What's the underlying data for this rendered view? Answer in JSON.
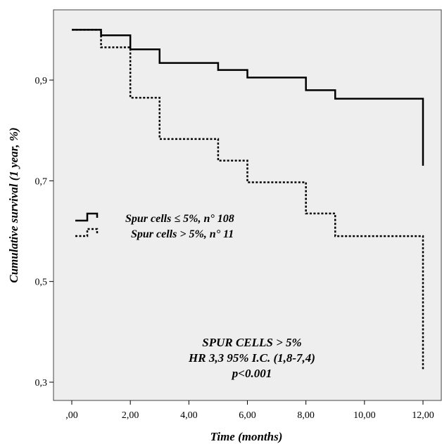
{
  "chart_data": {
    "type": "line",
    "step": true,
    "xlabel": "Time (months)",
    "ylabel": "Cumulative survival (1 year, %)",
    "xlim": [
      0,
      12
    ],
    "ylim": [
      0.27,
      1.02
    ],
    "x_ticks": [
      0,
      2,
      4,
      6,
      8,
      10,
      12
    ],
    "x_tick_labels": [
      ",00",
      "2,00",
      "4,00",
      "6,00",
      "8,00",
      "10,00",
      "12,00"
    ],
    "y_ticks": [
      0.3,
      0.5,
      0.7,
      0.9
    ],
    "y_tick_labels": [
      "0,3",
      "0,5",
      "0,7",
      "0,9"
    ],
    "grid": false,
    "plot_background": "#eeeeee",
    "legend_placement": "middle-left",
    "series": [
      {
        "name": "Spur cells ≤ 5%, n° 108",
        "style": "solid",
        "color": "#000000",
        "x": [
          0,
          1,
          2,
          3,
          5,
          6,
          8,
          9,
          12
        ],
        "y": [
          1.0,
          0.989,
          0.961,
          0.934,
          0.92,
          0.905,
          0.88,
          0.863,
          0.73
        ]
      },
      {
        "name": "Spur cells > 5%, n° 11",
        "style": "dotted",
        "color": "#000000",
        "x": [
          0,
          1,
          2,
          3,
          5,
          6,
          8,
          9,
          12
        ],
        "y": [
          1.0,
          0.965,
          0.865,
          0.783,
          0.74,
          0.697,
          0.635,
          0.59,
          0.325
        ]
      }
    ],
    "annotations": [
      "SPUR CELLS > 5%",
      "HR 3,3 95% I.C. (1,8-7,4)",
      "p<0.001"
    ]
  }
}
